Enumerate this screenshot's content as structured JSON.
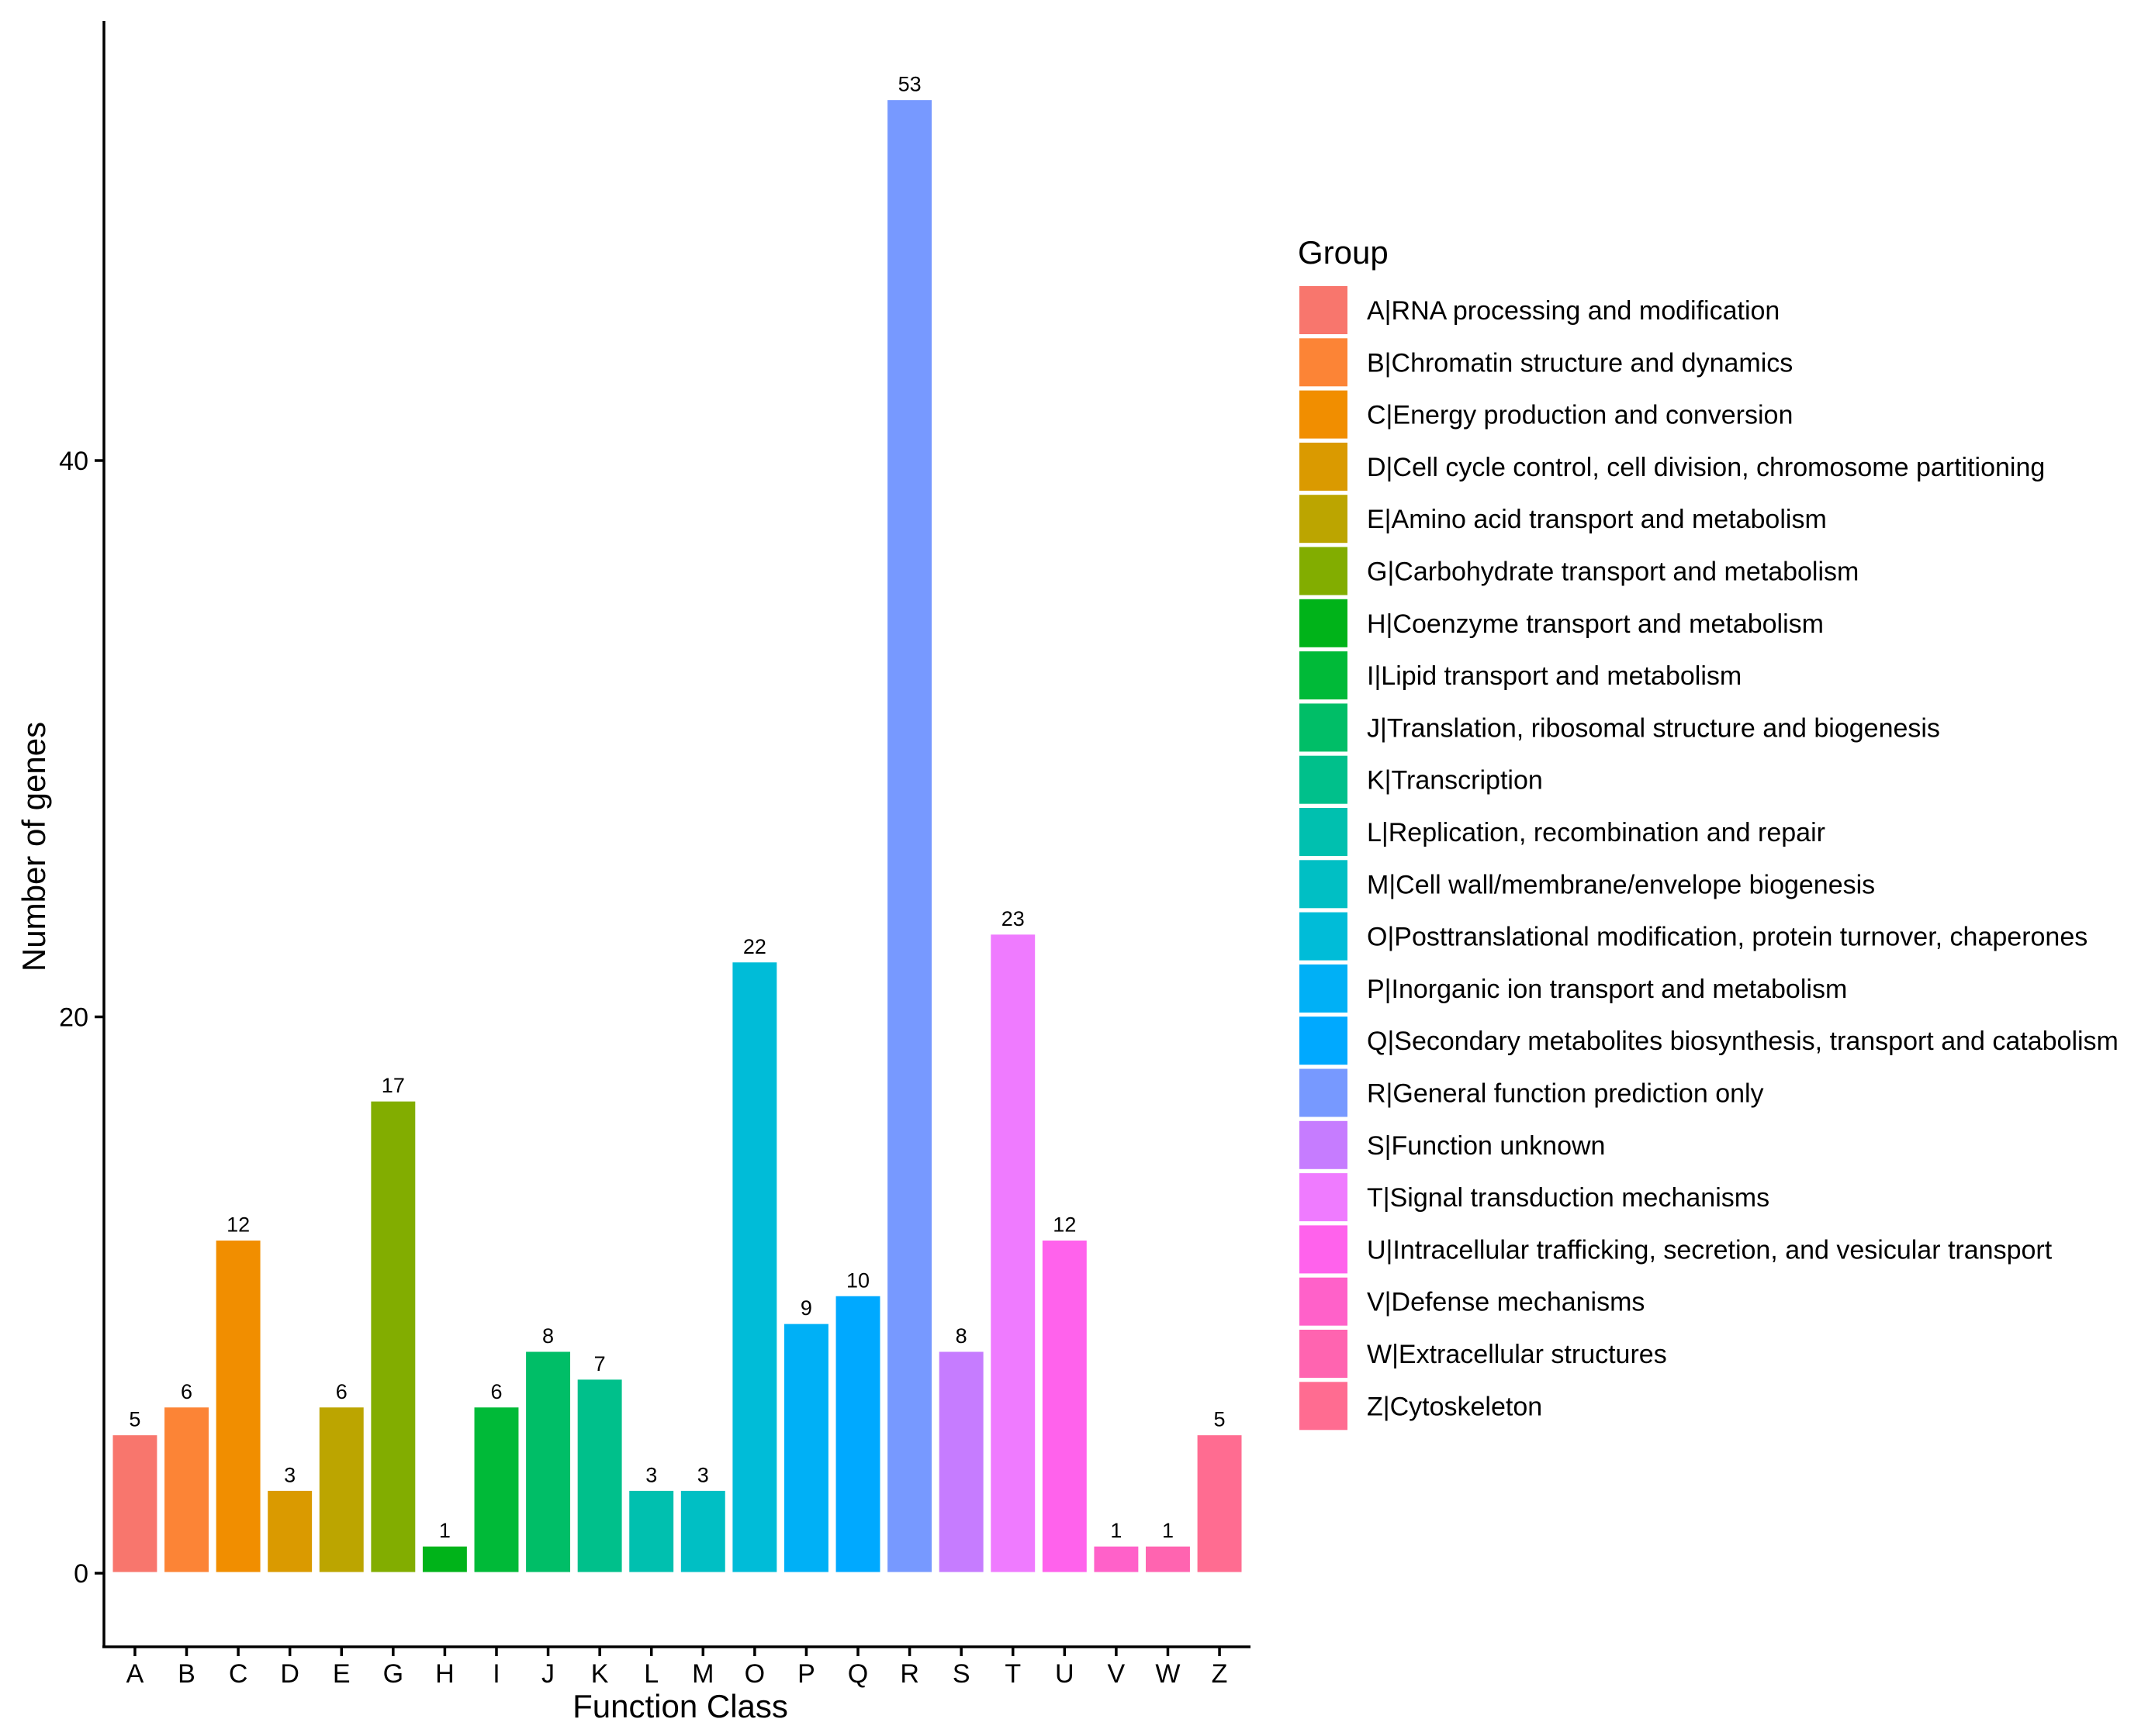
{
  "chart_data": {
    "type": "bar",
    "xlabel": "Function Class",
    "ylabel": "Number of genes",
    "ylim": [
      -2.5,
      55.5
    ],
    "yticks": [
      0,
      20,
      40
    ],
    "legend_title": "Group",
    "legend_position": "right",
    "categories": [
      "A",
      "B",
      "C",
      "D",
      "E",
      "G",
      "H",
      "I",
      "J",
      "K",
      "L",
      "M",
      "O",
      "P",
      "Q",
      "R",
      "S",
      "T",
      "U",
      "V",
      "W",
      "Z"
    ],
    "values": [
      5,
      6,
      12,
      3,
      6,
      17,
      1,
      6,
      8,
      7,
      3,
      3,
      22,
      9,
      10,
      53,
      8,
      23,
      12,
      1,
      1,
      5
    ],
    "colors": [
      "#F8766D",
      "#FC8436",
      "#F18E00",
      "#DA9A00",
      "#BCA500",
      "#82AD00",
      "#00B319",
      "#00BA38",
      "#00BE67",
      "#00C08B",
      "#00C0AF",
      "#00BFC4",
      "#00BCD8",
      "#00B0F6",
      "#00A9FF",
      "#7799FF",
      "#C67CFF",
      "#EF7BFF",
      "#FF62EC",
      "#FF61C9",
      "#FF64B0",
      "#FF6C91"
    ],
    "legend_labels": [
      "A|RNA processing and modification",
      "B|Chromatin structure and dynamics",
      "C|Energy production and conversion",
      "D|Cell cycle control, cell division, chromosome partitioning",
      "E|Amino acid transport and metabolism",
      "G|Carbohydrate transport and metabolism",
      "H|Coenzyme transport and metabolism",
      "I|Lipid transport and metabolism",
      "J|Translation, ribosomal structure and biogenesis",
      "K|Transcription",
      "L|Replication, recombination and repair",
      "M|Cell wall/membrane/envelope biogenesis",
      "O|Posttranslational modification, protein turnover, chaperones",
      "P|Inorganic ion transport and metabolism",
      "Q|Secondary metabolites biosynthesis, transport and catabolism",
      "R|General function prediction only",
      "S|Function unknown",
      "T|Signal transduction mechanisms",
      "U|Intracellular trafficking, secretion, and vesicular transport",
      "V|Defense mechanisms",
      "W|Extracellular structures",
      "Z|Cytoskeleton"
    ]
  }
}
